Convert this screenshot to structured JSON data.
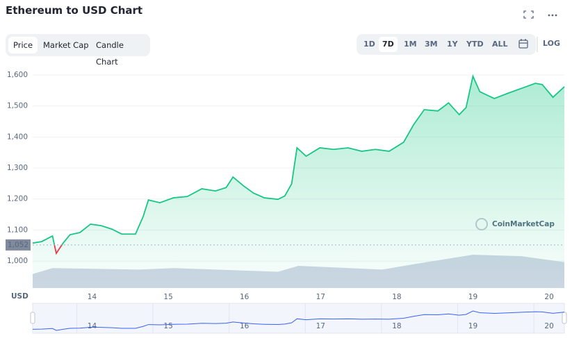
{
  "title": "Ethereum to USD Chart",
  "tabs": [
    "Price",
    "Market Cap",
    "Candle Chart"
  ],
  "ranges": [
    "1D",
    "7D",
    "1M",
    "3M",
    "1Y",
    "YTD",
    "ALL"
  ],
  "log_button": "LOG",
  "chart_data": {
    "type": "line",
    "y_axis_label": "USD",
    "watermark": "CoinMarketCap",
    "x": [
      13.22,
      13.34,
      13.48,
      13.53,
      13.56,
      13.62,
      13.71,
      13.84,
      13.98,
      14.12,
      14.26,
      14.39,
      14.57,
      14.67,
      14.74,
      14.89,
      15.07,
      15.25,
      15.44,
      15.62,
      15.76,
      15.85,
      15.99,
      16.12,
      16.26,
      16.44,
      16.53,
      16.62,
      16.69,
      16.81,
      16.99,
      17.17,
      17.36,
      17.54,
      17.72,
      17.9,
      18.09,
      18.22,
      18.36,
      18.54,
      18.68,
      18.82,
      18.91,
      19.0,
      19.09,
      19.28,
      19.45,
      19.64,
      19.82,
      19.91,
      20.05,
      20.2
    ],
    "series": [
      {
        "name": "Price",
        "color": "#16c784",
        "values": [
          1058,
          1063,
          1081,
          1025,
          1036,
          1058,
          1085,
          1092,
          1119,
          1114,
          1103,
          1087,
          1087,
          1143,
          1197,
          1188,
          1204,
          1208,
          1233,
          1226,
          1237,
          1271,
          1242,
          1219,
          1204,
          1199,
          1210,
          1249,
          1365,
          1338,
          1365,
          1360,
          1365,
          1354,
          1360,
          1354,
          1383,
          1439,
          1488,
          1484,
          1510,
          1472,
          1495,
          1596,
          1546,
          1524,
          1540,
          1557,
          1573,
          1569,
          1528,
          1562
        ]
      }
    ],
    "down_color": "#ea3943",
    "baseline": {
      "value": 1052,
      "label": "1,052"
    },
    "volume": {
      "x": [
        13.22,
        13.48,
        14.62,
        15.07,
        16.44,
        16.71,
        17.81,
        18.27,
        19.0,
        19.64,
        20.2
      ],
      "values": [
        19,
        27,
        25,
        27,
        22,
        30,
        25,
        33,
        45,
        43,
        35
      ],
      "color": "#cfd6e4"
    },
    "xlim": [
      13.22,
      20.2
    ],
    "xticks": [
      14,
      15,
      16,
      17,
      18,
      19,
      20
    ],
    "ylim": [
      913,
      1629
    ],
    "yticks": [
      {
        "value": 1000,
        "label": "1,000"
      },
      {
        "value": 1100,
        "label": "1,100"
      },
      {
        "value": 1200,
        "label": "1,200"
      },
      {
        "value": 1300,
        "label": "1,300"
      },
      {
        "value": 1400,
        "label": "1,400"
      },
      {
        "value": 1500,
        "label": "1,500"
      },
      {
        "value": 1600,
        "label": "1,600"
      }
    ],
    "grid": true
  }
}
